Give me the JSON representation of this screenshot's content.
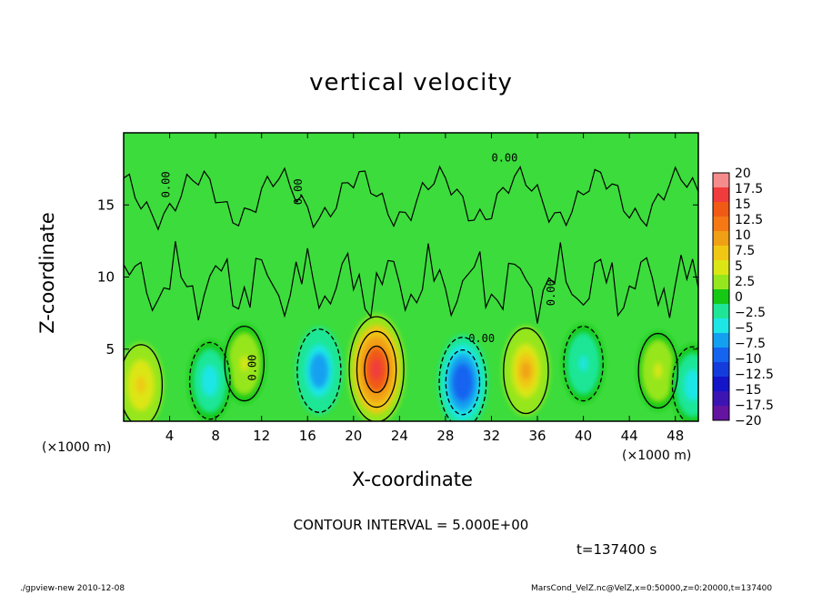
{
  "chart_data": {
    "type": "heatmap",
    "title": "vertical velocity",
    "xlabel": "X-coordinate",
    "ylabel": "Z-coordinate",
    "x_unit": "(×1000 m)",
    "xlim": [
      0,
      50
    ],
    "ylim": [
      0,
      20
    ],
    "x_ticks": [
      "4",
      "8",
      "12",
      "16",
      "20",
      "24",
      "28",
      "32",
      "36",
      "40",
      "44",
      "48"
    ],
    "x_tick_values": [
      4,
      8,
      12,
      16,
      20,
      24,
      28,
      32,
      36,
      40,
      44,
      48
    ],
    "y_ticks": [
      "5",
      "10",
      "15"
    ],
    "y_tick_values": [
      5,
      10,
      15
    ],
    "colorbar_labels": [
      "20",
      "17.5",
      "15",
      "12.5",
      "10",
      "7.5",
      "5",
      "2.5",
      "0",
      "−2.5",
      "−5",
      "−7.5",
      "−10",
      "−12.5",
      "−15",
      "−17.5",
      "−20"
    ],
    "colorbar_colors": [
      "#f58c8c",
      "#f03c3c",
      "#f05a14",
      "#f57814",
      "#f0a014",
      "#f0c814",
      "#dce614",
      "#96e61e",
      "#14c814",
      "#1ee696",
      "#1ee6e6",
      "#14a0f0",
      "#1464f0",
      "#143cdc",
      "#1414c8",
      "#3c14b4",
      "#6414a0"
    ],
    "background_value_color": "#3cdc3c",
    "contour_label": "0.00",
    "contour_interval": "CONTOUR INTERVAL = 5.000E+00",
    "features": [
      {
        "x": 22,
        "z": 3.6,
        "value": 18,
        "kind": "updraft"
      },
      {
        "x": 35,
        "z": 3.5,
        "value": 9,
        "kind": "updraft"
      },
      {
        "x": 1.5,
        "z": 2.5,
        "value": 7,
        "kind": "updraft"
      },
      {
        "x": 10.5,
        "z": 4,
        "value": 4,
        "kind": "updraft"
      },
      {
        "x": 46.5,
        "z": 3.5,
        "value": 4,
        "kind": "updraft"
      },
      {
        "x": 29.5,
        "z": 2.7,
        "value": -11,
        "kind": "downdraft"
      },
      {
        "x": 17,
        "z": 3.5,
        "value": -8,
        "kind": "downdraft"
      },
      {
        "x": 7.5,
        "z": 2.8,
        "value": -5,
        "kind": "downdraft"
      },
      {
        "x": 40,
        "z": 4,
        "value": -4,
        "kind": "downdraft"
      },
      {
        "x": 49.5,
        "z": 2.5,
        "value": -5,
        "kind": "downdraft"
      }
    ]
  },
  "time_label": "t=137400 s",
  "footer_left": "./gpview-new   2010-12-08",
  "footer_right": "MarsCond_VelZ.nc@VelZ,x=0:50000,z=0:20000,t=137400"
}
